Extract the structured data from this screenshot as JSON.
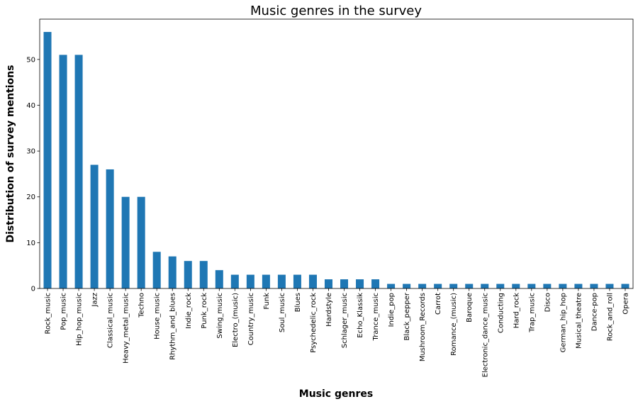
{
  "chart_data": {
    "type": "bar",
    "title": "Music genres in the survey",
    "xlabel": "Music genres",
    "ylabel": "Distribution of survey mentions",
    "ylim": [
      0,
      58.8
    ],
    "yticks": [
      0,
      10,
      20,
      30,
      40,
      50
    ],
    "grid": false,
    "bar_color": "#1f77b4",
    "categories": [
      "Rock_music",
      "Pop_music",
      "Hip_hop_music",
      "Jazz",
      "Classical_music",
      "Heavy_metal_music",
      "Techno",
      "House_music",
      "Rhythm_and_blues",
      "Indie_rock",
      "Punk_rock",
      "Swing_music",
      "Electro_(music)",
      "Country_music",
      "Funk",
      "Soul_music",
      "Blues",
      "Psychedelic_rock",
      "Hardstyle",
      "Schlager_music",
      "Echo_Klassik",
      "Trance_music",
      "Indie_pop",
      "Black_pepper",
      "Mushroom_Records",
      "Carrot",
      "Romance_(music)",
      "Baroque",
      "Electronic_dance_music",
      "Conducting",
      "Hard_rock",
      "Trap_music",
      "Disco",
      "German_hip_hop",
      "Musical_theatre",
      "Dance-pop",
      "Rock_and_roll",
      "Opera"
    ],
    "values": [
      56,
      51,
      51,
      27,
      26,
      20,
      20,
      8,
      7,
      6,
      6,
      4,
      3,
      3,
      3,
      3,
      3,
      3,
      2,
      2,
      2,
      2,
      1,
      1,
      1,
      1,
      1,
      1,
      1,
      1,
      1,
      1,
      1,
      1,
      1,
      1,
      1,
      1
    ]
  }
}
